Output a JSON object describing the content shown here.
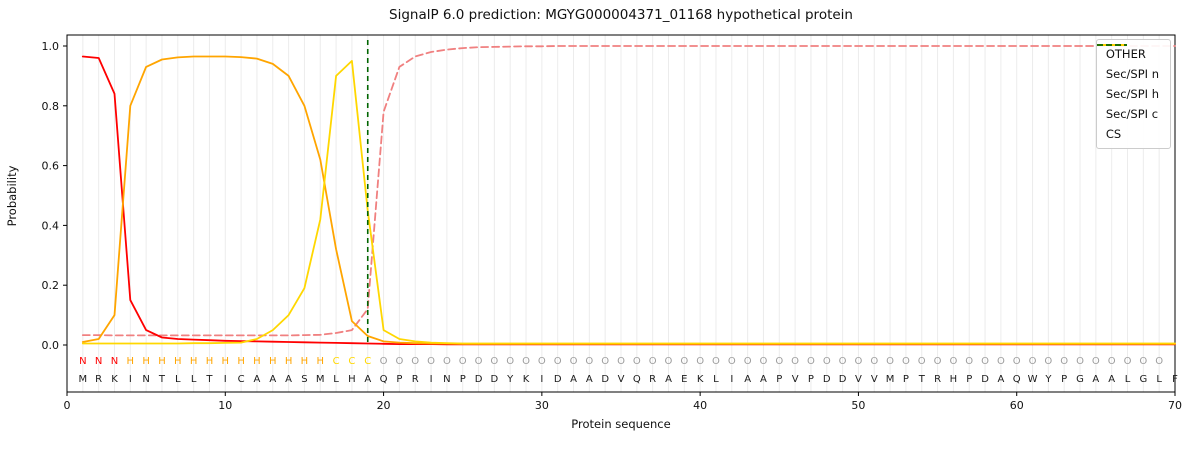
{
  "chart_data": {
    "type": "line",
    "title": "SignalP 6.0 prediction: MGYG000004371_01168 hypothetical protein",
    "xlabel": "Protein sequence",
    "ylabel": "Probability",
    "xlim": [
      0,
      70
    ],
    "ylim": [
      0.0,
      1.0
    ],
    "xticks": [
      0,
      10,
      20,
      30,
      40,
      50,
      60,
      70
    ],
    "yticks": [
      "0.0",
      "0.2",
      "0.4",
      "0.6",
      "0.8",
      "1.0"
    ],
    "grid": "vertical-per-residue",
    "legend_position": "upper right",
    "cs_position": 19,
    "sequence": "MRKINTLLTICAAASMLHAQPRINPDDYKIDAADVQRAEKLIAAPVPDDVVMPTRHPDAQWYPGAALGLF",
    "region_labels": "NNNHHHHHHHHHHHHHCCCOOOOOOOOOOOOOOOOOOOOOOOOOOOOOOOOOOOOOOOOOOOOOOOOOO",
    "region_colors": {
      "N": "#ff0000",
      "H": "#ffa500",
      "C": "#ffd700",
      "O": "#9e9e9e"
    },
    "sequence_color": "#1a1a1a",
    "grid_color": "#ececec",
    "series": [
      {
        "name": "OTHER",
        "color": "#f08080",
        "dash": true,
        "values": [
          0.033,
          0.033,
          0.032,
          0.032,
          0.032,
          0.032,
          0.032,
          0.032,
          0.032,
          0.032,
          0.032,
          0.032,
          0.032,
          0.032,
          0.033,
          0.034,
          0.04,
          0.05,
          0.12,
          0.78,
          0.93,
          0.965,
          0.98,
          0.988,
          0.993,
          0.996,
          0.997,
          0.998,
          0.999,
          0.999,
          1.0,
          1.0,
          1.0,
          1.0,
          1.0,
          1.0,
          1.0,
          1.0,
          1.0,
          1.0,
          1.0,
          1.0,
          1.0,
          1.0,
          1.0,
          1.0,
          1.0,
          1.0,
          1.0,
          1.0,
          1.0,
          1.0,
          1.0,
          1.0,
          1.0,
          1.0,
          1.0,
          1.0,
          1.0,
          1.0,
          1.0,
          1.0,
          1.0,
          1.0,
          1.0,
          1.0,
          1.0,
          1.0,
          1.0,
          1.0
        ]
      },
      {
        "name": "Sec/SPI n",
        "color": "#ff0000",
        "dash": false,
        "values": [
          0.965,
          0.96,
          0.84,
          0.15,
          0.05,
          0.025,
          0.02,
          0.018,
          0.016,
          0.014,
          0.013,
          0.012,
          0.011,
          0.01,
          0.009,
          0.008,
          0.007,
          0.006,
          0.005,
          0.004,
          0.003,
          0.003,
          0.003,
          0.002,
          0.002,
          0.002,
          0.002,
          0.002,
          0.002,
          0.002,
          0.002,
          0.002,
          0.002,
          0.002,
          0.002,
          0.002,
          0.002,
          0.002,
          0.002,
          0.002,
          0.002,
          0.002,
          0.002,
          0.002,
          0.002,
          0.002,
          0.002,
          0.002,
          0.002,
          0.002,
          0.002,
          0.002,
          0.002,
          0.002,
          0.002,
          0.002,
          0.002,
          0.002,
          0.002,
          0.002,
          0.002,
          0.002,
          0.002,
          0.002,
          0.002,
          0.002,
          0.002,
          0.002,
          0.002,
          0.002
        ]
      },
      {
        "name": "Sec/SPI h",
        "color": "#ffa500",
        "dash": false,
        "values": [
          0.01,
          0.02,
          0.1,
          0.8,
          0.93,
          0.955,
          0.962,
          0.965,
          0.965,
          0.965,
          0.963,
          0.958,
          0.94,
          0.9,
          0.8,
          0.62,
          0.32,
          0.08,
          0.03,
          0.012,
          0.008,
          0.006,
          0.005,
          0.005,
          0.004,
          0.004,
          0.004,
          0.004,
          0.004,
          0.004,
          0.004,
          0.004,
          0.004,
          0.004,
          0.004,
          0.004,
          0.004,
          0.004,
          0.004,
          0.004,
          0.004,
          0.004,
          0.004,
          0.004,
          0.004,
          0.004,
          0.004,
          0.004,
          0.004,
          0.004,
          0.004,
          0.004,
          0.004,
          0.004,
          0.004,
          0.004,
          0.004,
          0.004,
          0.004,
          0.004,
          0.004,
          0.004,
          0.004,
          0.004,
          0.004,
          0.004,
          0.004,
          0.004,
          0.004,
          0.004
        ]
      },
      {
        "name": "Sec/SPI c",
        "color": "#ffd700",
        "dash": false,
        "values": [
          0.005,
          0.005,
          0.005,
          0.005,
          0.005,
          0.005,
          0.005,
          0.006,
          0.006,
          0.007,
          0.008,
          0.02,
          0.05,
          0.1,
          0.19,
          0.42,
          0.9,
          0.95,
          0.45,
          0.05,
          0.02,
          0.012,
          0.008,
          0.006,
          0.005,
          0.005,
          0.005,
          0.005,
          0.005,
          0.005,
          0.005,
          0.005,
          0.005,
          0.005,
          0.005,
          0.005,
          0.005,
          0.005,
          0.005,
          0.005,
          0.005,
          0.005,
          0.005,
          0.005,
          0.005,
          0.005,
          0.005,
          0.005,
          0.005,
          0.005,
          0.005,
          0.005,
          0.005,
          0.005,
          0.005,
          0.005,
          0.005,
          0.005,
          0.005,
          0.005,
          0.005,
          0.005,
          0.005,
          0.005,
          0.005,
          0.005,
          0.005,
          0.005,
          0.005,
          0.005
        ]
      },
      {
        "name": "CS",
        "color": "#006400",
        "dash": true,
        "kind": "vline",
        "x": 19
      }
    ]
  }
}
